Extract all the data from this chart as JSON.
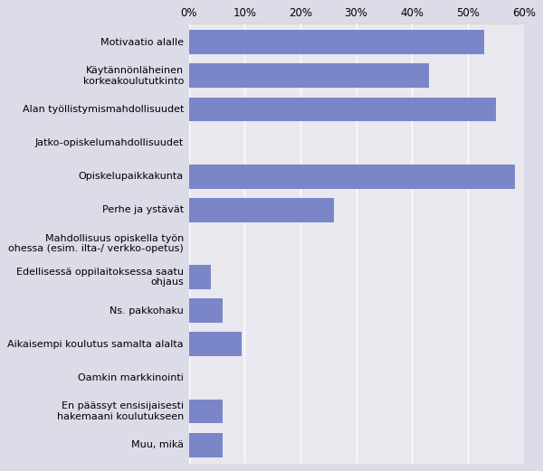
{
  "categories": [
    "Motivaatio alalle",
    "Käytännönläheinen\nkorkeakoulututkinto",
    "Alan työllistymismahdollisuudet",
    "Jatko-opiskelumahdollisuudet",
    "Opiskelupaikkakunta",
    "Perhe ja ystävät",
    "Mahdollisuus opiskella työn\nohessa (esim. ilta-/ verkko-opetus)",
    "Edellisessä oppilaitoksessa saatu\nohjaus",
    "Ns. pakkohaku",
    "Aikaisempi koulutus samalta alalta",
    "Oamkin markkinointi",
    "En päässyt ensisijaisesti\nhakemaani koulutukseen",
    "Muu, mikä"
  ],
  "values": [
    0.53,
    0.43,
    0.55,
    0.001,
    0.585,
    0.26,
    0.001,
    0.04,
    0.06,
    0.095,
    0.001,
    0.06,
    0.06
  ],
  "bar_color": "#7b86c8",
  "plot_bg_color": "#e8e8ee",
  "outer_bg_color": "#dcdce8",
  "xlim": [
    0,
    0.6
  ],
  "xticks": [
    0.0,
    0.1,
    0.2,
    0.3,
    0.4,
    0.5,
    0.6
  ],
  "xtick_labels": [
    "0%",
    "10%",
    "20%",
    "30%",
    "40%",
    "50%",
    "60%"
  ],
  "figsize": [
    6.0,
    5.21
  ],
  "dpi": 100,
  "label_fontsize": 8,
  "tick_fontsize": 8.5,
  "bar_height": 0.72
}
